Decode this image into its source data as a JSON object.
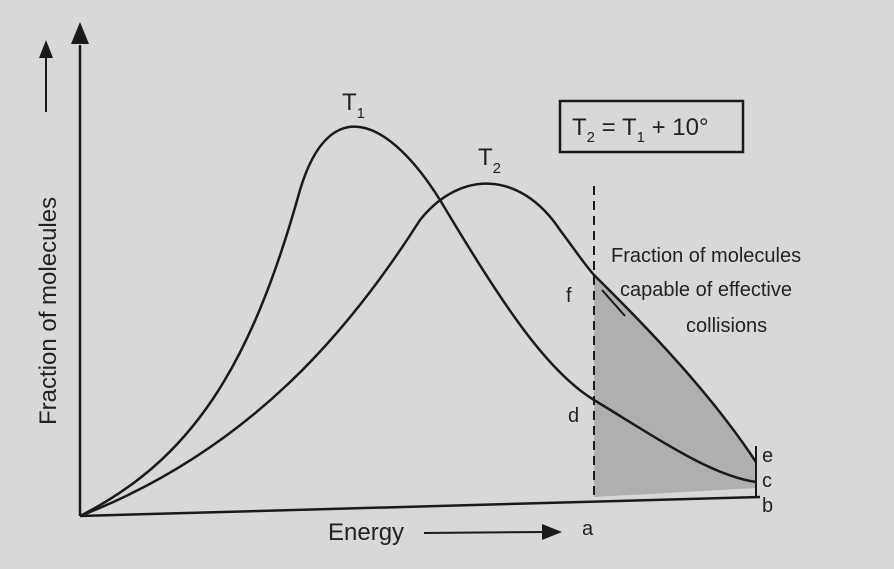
{
  "axes": {
    "y_label": "Fraction of molecules",
    "x_label": "Energy"
  },
  "curves": [
    {
      "name": "T",
      "subscript": "1"
    },
    {
      "name": "T",
      "subscript": "2"
    }
  ],
  "formula": {
    "lhs": "T",
    "lhs_sub": "2",
    "eq": " = ",
    "rhs": "T",
    "rhs_sub": "1",
    "tail": " + 10°"
  },
  "annotation": {
    "lines": [
      "Fraction of molecules",
      "capable of effective",
      "collisions"
    ]
  },
  "point_labels": {
    "a": "a",
    "b": "b",
    "c": "c",
    "d": "d",
    "e": "e",
    "f": "f"
  },
  "colors": {
    "line": "#1a1a1a",
    "shade": "#9e9d9b",
    "background": "#d9d8d6"
  }
}
